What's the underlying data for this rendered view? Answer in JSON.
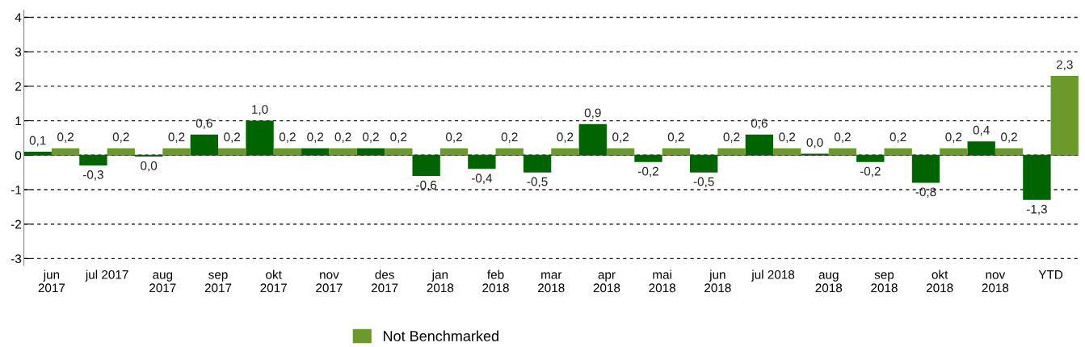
{
  "chart_data": {
    "type": "bar",
    "categories": [
      "jun\n2017",
      "jul 2017",
      "aug\n2017",
      "sep\n2017",
      "okt\n2017",
      "nov\n2017",
      "des\n2017",
      "jan\n2018",
      "feb\n2018",
      "mar\n2018",
      "apr\n2018",
      "mai\n2018",
      "jun\n2018",
      "jul 2018",
      "aug\n2018",
      "sep\n2018",
      "okt\n2018",
      "nov\n2018",
      "YTD"
    ],
    "series": [
      {
        "color": "#006400",
        "values": [
          0.1,
          -0.3,
          -0.04,
          0.6,
          1.0,
          0.2,
          0.2,
          -0.6,
          -0.4,
          -0.5,
          0.9,
          -0.2,
          -0.5,
          0.6,
          0.04,
          -0.2,
          -0.8,
          0.4,
          -1.3
        ],
        "value_labels": [
          "0,1",
          "-0,3",
          "0,0",
          "0,6",
          "1,0",
          "0,2",
          "0,2",
          "-0,6",
          "-0,4",
          "-0,5",
          "0,9",
          "-0,2",
          "-0,5",
          "0,6",
          "0,0",
          "-0,2",
          "-0,8",
          "0,4",
          "-1,3"
        ]
      },
      {
        "name": "Not Benchmarked",
        "color": "#6b9a2a",
        "values": [
          0.2,
          0.2,
          0.2,
          0.2,
          0.2,
          0.2,
          0.2,
          0.2,
          0.2,
          0.2,
          0.2,
          0.2,
          0.2,
          0.2,
          0.2,
          0.2,
          0.2,
          0.2,
          2.3
        ],
        "value_labels": [
          "0,2",
          "0,2",
          "0,2",
          "0,2",
          "0,2",
          "0,2",
          "0,2",
          "0,2",
          "0,2",
          "0,2",
          "0,2",
          "0,2",
          "0,2",
          "0,2",
          "0,2",
          "0,2",
          "0,2",
          "0,2",
          "2,3"
        ]
      }
    ],
    "ylim": [
      -3.2,
      4.2
    ],
    "yticks": [
      -3,
      -2,
      -1,
      0,
      1,
      2,
      3,
      4
    ],
    "grid": "y",
    "legend": "bottom left"
  }
}
